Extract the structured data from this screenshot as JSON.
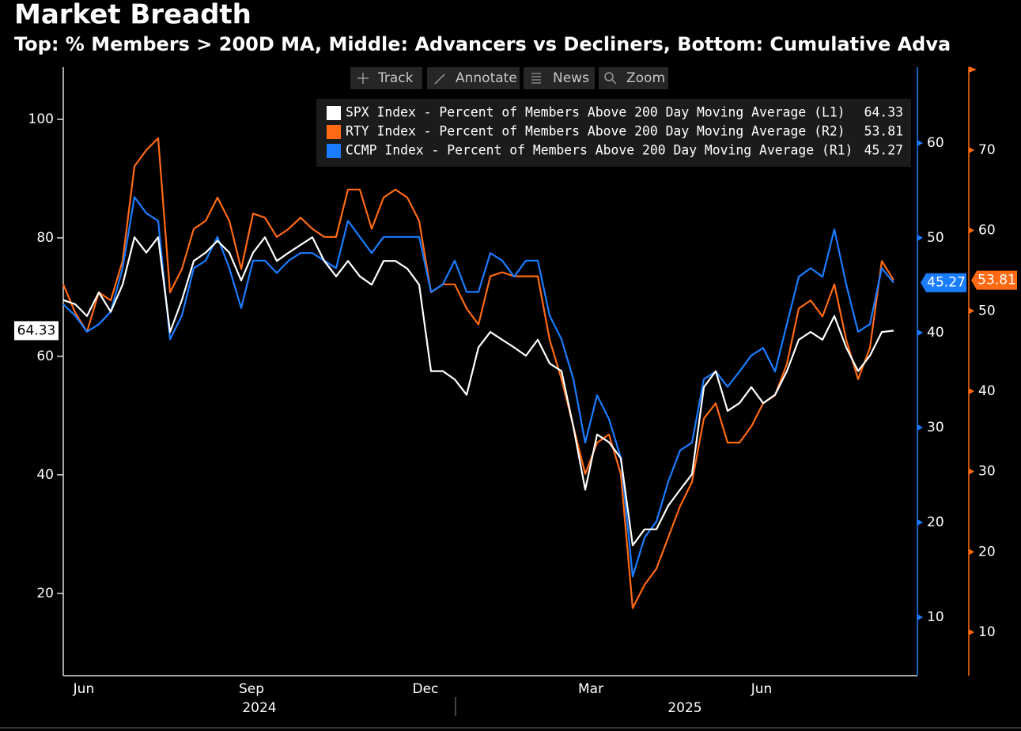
{
  "toolbar": [
    "Track",
    "Annotate",
    "News",
    "Zoom"
  ],
  "chart_data": {
    "type": "line",
    "title": "Market Breadth",
    "subtitle": "Top: % Members > 200D MA, Middle: Advancers vs Decliners, Bottom: Cumulative Adva",
    "legend": "top-right",
    "xlim": [
      0,
      72
    ],
    "xticks": [
      {
        "value": 1.73,
        "label": "Jun"
      },
      {
        "value": 15.87,
        "label": "Sep"
      },
      {
        "value": 30.53,
        "label": "Dec"
      },
      {
        "value": 44.47,
        "label": "Mar"
      },
      {
        "value": 58.87,
        "label": "Jun"
      }
    ],
    "xticks_secondary": [
      {
        "value": 16.53,
        "label": "2024"
      },
      {
        "value": 52.4,
        "label": "2025"
      }
    ],
    "ylim": [
      6.1,
      108.8
    ],
    "yticks": [
      20,
      40,
      60,
      80,
      100
    ],
    "y2lim": [
      3.83,
      68
    ],
    "y2ticks": [
      10,
      20,
      30,
      40,
      50,
      60
    ],
    "y3lim": [
      4.59,
      80.33
    ],
    "y3ticks": [
      10,
      20,
      30,
      40,
      50,
      60,
      70
    ],
    "series": [
      {
        "name": "SPX Index - Percent of Members Above 200 Day Moving Average (L1)",
        "color": "#ffffff",
        "axis": "y",
        "values": [
          69.5,
          68.8,
          66.8,
          70.8,
          67.5,
          72.1,
          80.1,
          77.5,
          80.1,
          64.1,
          69.5,
          76.1,
          77.5,
          79.5,
          77.5,
          72.8,
          77.5,
          80.1,
          76.1,
          77.5,
          78.8,
          80.1,
          76.1,
          73.5,
          76.1,
          73.5,
          72.1,
          76.1,
          76.1,
          74.8,
          72.1,
          57.5,
          57.5,
          56.1,
          53.5,
          61.5,
          64.1,
          62.8,
          61.5,
          60.1,
          62.8,
          58.8,
          57.5,
          48.1,
          37.5,
          46.8,
          45.5,
          42.8,
          28.1,
          30.8,
          30.8,
          34.8,
          37.5,
          40.1,
          54.8,
          57.5,
          50.8,
          52.1,
          54.8,
          52.1,
          53.5,
          57.5,
          62.8,
          64.1,
          62.8,
          66.8,
          61.5,
          57.5,
          60.1,
          64.1,
          64.33
        ]
      },
      {
        "name": "RTY Index - Percent of Members Above 200 Day Moving Average (R2)",
        "color": "#ff6a13",
        "axis": "y3",
        "values": [
          53.3,
          49.8,
          47.4,
          52.3,
          51.3,
          56.2,
          68.0,
          70.0,
          71.5,
          52.3,
          55.2,
          60.2,
          61.2,
          64.1,
          61.2,
          55.2,
          62.1,
          61.6,
          59.2,
          60.2,
          61.6,
          60.2,
          59.2,
          59.2,
          65.1,
          65.1,
          60.2,
          64.1,
          65.1,
          64.1,
          61.2,
          52.3,
          53.3,
          53.3,
          50.3,
          48.3,
          54.3,
          54.8,
          54.3,
          54.3,
          54.3,
          46.4,
          41.5,
          35.6,
          29.7,
          33.6,
          34.6,
          29.7,
          13.0,
          15.9,
          17.9,
          21.8,
          25.7,
          28.7,
          36.6,
          38.5,
          33.6,
          33.6,
          35.6,
          38.5,
          39.5,
          43.4,
          50.3,
          51.3,
          49.3,
          53.3,
          46.4,
          41.5,
          45.4,
          56.2,
          53.81
        ]
      },
      {
        "name": "CCMP Index - Percent of Members Above 200 Day Moving Average (R1)",
        "color": "#1a7cff",
        "axis": "y2",
        "values": [
          43.0,
          41.8,
          40.1,
          40.9,
          42.2,
          46.8,
          54.3,
          52.6,
          51.8,
          39.3,
          41.8,
          46.8,
          47.6,
          50.1,
          46.8,
          42.6,
          47.6,
          47.6,
          46.3,
          47.6,
          48.4,
          48.4,
          47.6,
          46.8,
          51.8,
          50.1,
          48.4,
          50.1,
          50.1,
          50.1,
          50.1,
          44.3,
          45.1,
          47.6,
          44.3,
          44.3,
          48.4,
          47.6,
          45.9,
          47.6,
          47.6,
          41.8,
          39.3,
          35.1,
          28.4,
          33.4,
          30.9,
          26.8,
          14.3,
          18.4,
          20.1,
          24.3,
          27.6,
          28.4,
          35.1,
          35.9,
          34.3,
          35.9,
          37.6,
          38.4,
          35.9,
          40.9,
          45.9,
          46.8,
          45.9,
          50.9,
          45.1,
          40.1,
          40.9,
          46.8,
          45.27
        ]
      }
    ]
  }
}
